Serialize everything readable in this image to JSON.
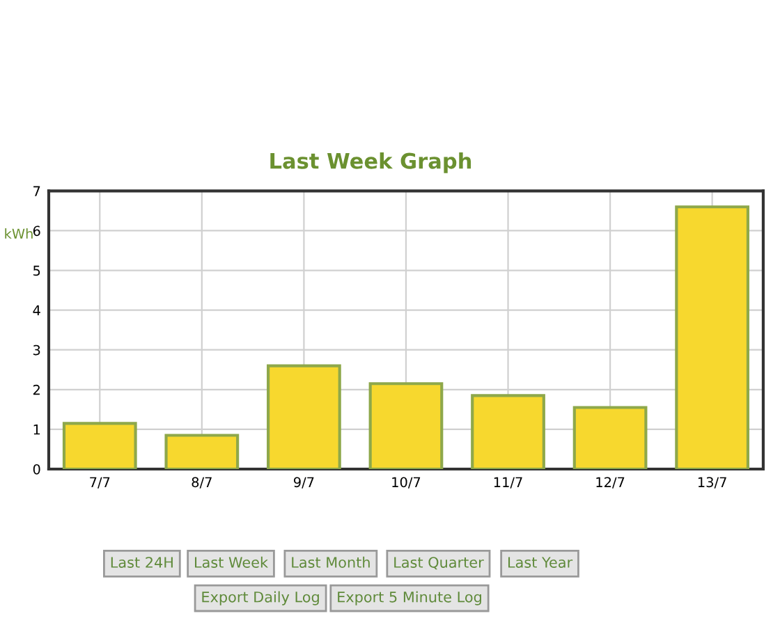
{
  "chart_data": {
    "type": "bar",
    "title": "Last Week Graph",
    "ylabel": "kWh",
    "categories": [
      "7/7",
      "8/7",
      "9/7",
      "10/7",
      "11/7",
      "12/7",
      "13/7"
    ],
    "values": [
      1.15,
      0.85,
      2.6,
      2.15,
      1.85,
      1.55,
      6.6
    ],
    "color": "#f7d82e",
    "ylim": [
      0,
      7
    ],
    "yticks": [
      0,
      1,
      2,
      3,
      4,
      5,
      6,
      7
    ],
    "grid": true,
    "annotations": [
      "Last 24H",
      "Last Week",
      "Last Month",
      "Last Quarter",
      "Last Year",
      "Export Daily Log",
      "Export 5 Minute Log"
    ]
  }
}
